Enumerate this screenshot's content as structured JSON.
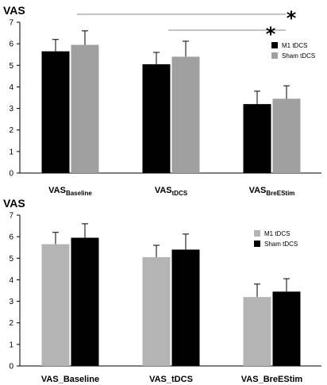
{
  "chart_data": [
    {
      "type": "bar",
      "ylabel": "VAS",
      "ylim": [
        0,
        7
      ],
      "yticks": [
        "0",
        "1",
        "2",
        "3",
        "4",
        "5",
        "6",
        "7"
      ],
      "categories": [
        {
          "main": "VAS",
          "sub": "Baseline"
        },
        {
          "main": "VAS",
          "sub": "tDCS"
        },
        {
          "main": "VAS",
          "sub": "BreEStim"
        }
      ],
      "series": [
        {
          "name": "M1 tDCS",
          "color": "#000000",
          "values": [
            5.65,
            5.05,
            3.2
          ],
          "errors": [
            0.55,
            0.55,
            0.6
          ]
        },
        {
          "name": "Sham tDCS",
          "color": "#a0a0a0",
          "values": [
            5.95,
            5.4,
            3.45
          ],
          "errors": [
            0.65,
            0.72,
            0.6
          ]
        }
      ],
      "legend_position": "right",
      "significance": [
        {
          "from_category": 0,
          "to_category": 2,
          "marker": "*"
        },
        {
          "from_category": 1,
          "to_category": 2,
          "marker": "*"
        }
      ]
    },
    {
      "type": "bar",
      "ylabel": "VAS",
      "ylim": [
        0,
        7
      ],
      "yticks": [
        "0",
        "1",
        "2",
        "3",
        "4",
        "5",
        "6",
        "7"
      ],
      "categories": [
        {
          "main": "VAS_Baseline",
          "sub": ""
        },
        {
          "main": "VAS_tDCS",
          "sub": ""
        },
        {
          "main": "VAS_BreEStim",
          "sub": ""
        }
      ],
      "series": [
        {
          "name": "M1 tDCS",
          "color": "#b4b4b4",
          "values": [
            5.65,
            5.05,
            3.2
          ],
          "errors": [
            0.55,
            0.55,
            0.6
          ]
        },
        {
          "name": "Sham tDCS",
          "color": "#000000",
          "values": [
            5.95,
            5.4,
            3.45
          ],
          "errors": [
            0.65,
            0.72,
            0.6
          ]
        }
      ],
      "legend_position": "right",
      "significance": []
    }
  ]
}
